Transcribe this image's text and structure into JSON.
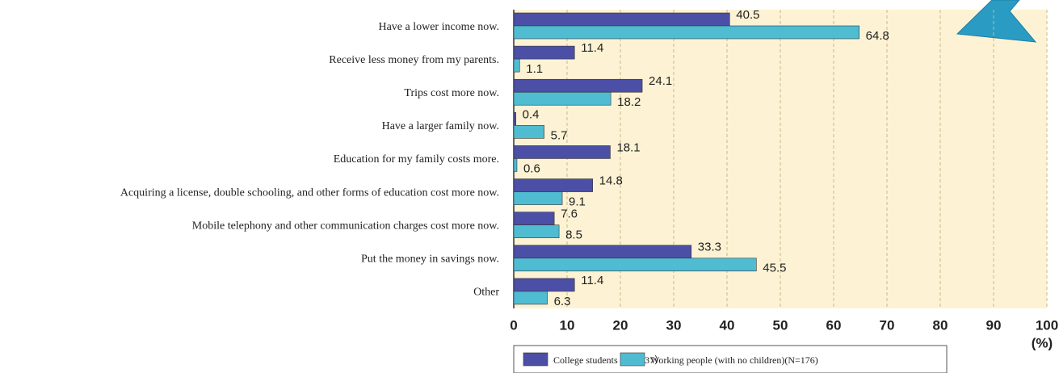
{
  "chart_data": {
    "type": "bar",
    "orientation": "horizontal",
    "categories": [
      "Have a lower income now.",
      "Receive less money from my parents.",
      "Trips cost more now.",
      "Have a larger family now.",
      "Education for my family costs more.",
      "Acquiring a license, double schooling, and other forms of education cost more now.",
      "Mobile telephony and other communication charges cost more now.",
      "Put the money in savings now.",
      "Other"
    ],
    "series": [
      {
        "name": "College students（N=237）",
        "color": "#4b4fa6",
        "values": [
          40.5,
          11.4,
          24.1,
          0.4,
          18.1,
          14.8,
          7.6,
          33.3,
          11.4
        ]
      },
      {
        "name": "Working people (with no children)(N=176)",
        "color": "#4fbcd2",
        "values": [
          64.8,
          1.1,
          18.2,
          5.7,
          0.6,
          9.1,
          8.5,
          45.5,
          6.3
        ]
      }
    ],
    "xlim": [
      0,
      100
    ],
    "xticks": [
      0,
      10,
      20,
      30,
      40,
      50,
      60,
      70,
      80,
      90,
      100
    ],
    "xlabel": "(%)",
    "grid": true,
    "legend": "bottom"
  }
}
